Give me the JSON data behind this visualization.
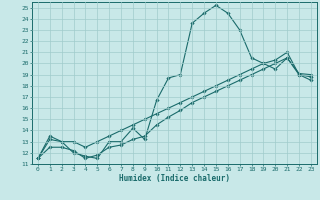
{
  "xlabel": "Humidex (Indice chaleur)",
  "bg_color": "#c8e8e8",
  "grid_color": "#a0cccc",
  "line_color": "#1a6b6b",
  "xlim": [
    -0.5,
    23.5
  ],
  "ylim": [
    11,
    25.5
  ],
  "xticks": [
    0,
    1,
    2,
    3,
    4,
    5,
    6,
    7,
    8,
    9,
    10,
    11,
    12,
    13,
    14,
    15,
    16,
    17,
    18,
    19,
    20,
    21,
    22,
    23
  ],
  "yticks": [
    11,
    12,
    13,
    14,
    15,
    16,
    17,
    18,
    19,
    20,
    21,
    22,
    23,
    24,
    25
  ],
  "line1_x": [
    0,
    1,
    2,
    3,
    4,
    5,
    6,
    7,
    8,
    9,
    10,
    11,
    12,
    13,
    14,
    15,
    16,
    17,
    18,
    19,
    20,
    21,
    22,
    23
  ],
  "line1_y": [
    11.5,
    13.5,
    13.0,
    12.0,
    11.7,
    11.5,
    13.0,
    13.0,
    14.2,
    13.2,
    16.7,
    18.7,
    19.0,
    23.6,
    24.5,
    25.2,
    24.5,
    23.0,
    20.5,
    20.0,
    19.5,
    20.5,
    19.1,
    19.0
  ],
  "line2_x": [
    0,
    1,
    2,
    3,
    4,
    5,
    6,
    7,
    8,
    9,
    10,
    11,
    12,
    13,
    14,
    15,
    16,
    17,
    18,
    19,
    20,
    21,
    22,
    23
  ],
  "line2_y": [
    11.5,
    13.2,
    13.0,
    13.0,
    12.5,
    13.0,
    13.5,
    14.0,
    14.5,
    15.0,
    15.5,
    16.0,
    16.5,
    17.0,
    17.5,
    18.0,
    18.5,
    19.0,
    19.5,
    20.0,
    20.3,
    21.0,
    19.0,
    18.5
  ],
  "line3_x": [
    0,
    1,
    2,
    3,
    4,
    5,
    6,
    7,
    8,
    9,
    10,
    11,
    12,
    13,
    14,
    15,
    16,
    17,
    18,
    19,
    20,
    21,
    22,
    23
  ],
  "line3_y": [
    11.5,
    12.5,
    12.5,
    12.2,
    11.5,
    11.8,
    12.5,
    12.7,
    13.2,
    13.5,
    14.5,
    15.2,
    15.8,
    16.5,
    17.0,
    17.5,
    18.0,
    18.5,
    19.0,
    19.5,
    20.0,
    20.5,
    19.0,
    18.8
  ]
}
